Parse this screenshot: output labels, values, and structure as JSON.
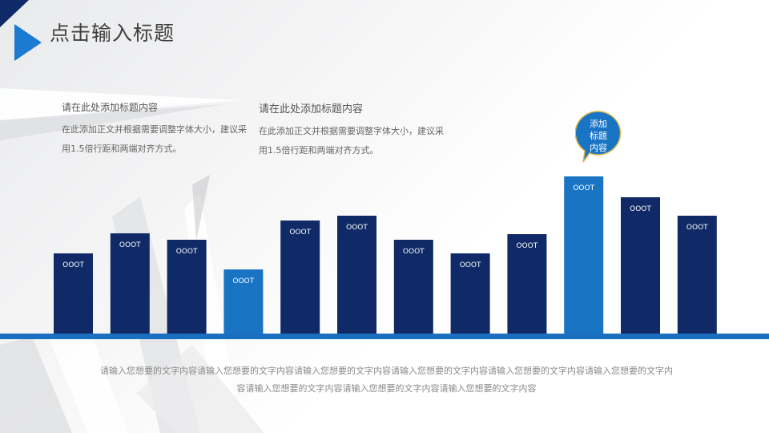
{
  "title": "点击输入标题",
  "text_blocks": [
    {
      "heading": "请在此处添加标题内容",
      "body": "在此添加正文并根据需要调整字体大小，建议采用1.5倍行距和两端对齐方式。"
    },
    {
      "heading": "请在此处添加标题内容",
      "body": "在此添加正文并根据需要调整字体大小，建议采用1.5倍行距和两端对齐方式。"
    }
  ],
  "callout": {
    "lines": [
      "添加",
      "标题",
      "内容"
    ]
  },
  "footer": "请输入您想要的文字内容请输入您想要的文字内容请输入您想要的文字内容请输入您想要的文字内容请输入您想要的文字内容请输入您想要的文字内容请输入您想要的文字内容请输入您想要的文字内容请输入您想要的文字内容",
  "colors": {
    "dark_bar": "#0f2a66",
    "highlight_bar": "#1a74c4",
    "baseline": "#1a6fc0",
    "callout_fill": "#1a74c4",
    "callout_border": "#e0b84a"
  },
  "chart_data": {
    "type": "bar",
    "categories": [
      "",
      "",
      "",
      "",
      "",
      "",
      "",
      "",
      "",
      "",
      "",
      ""
    ],
    "values": [
      100,
      125,
      117,
      80,
      141,
      147,
      117,
      100,
      124,
      196,
      170,
      147
    ],
    "labels": [
      "OOOT",
      "OOOT",
      "OOOT",
      "OOOT",
      "OOOT",
      "OOOT",
      "OOOT",
      "OOOT",
      "OOOT",
      "OOOT",
      "OOOT",
      "OOOT"
    ],
    "highlight": [
      false,
      false,
      false,
      true,
      false,
      false,
      false,
      false,
      false,
      true,
      false,
      false
    ],
    "ylim": [
      0,
      200
    ],
    "grid": false,
    "axes_visible": false
  }
}
